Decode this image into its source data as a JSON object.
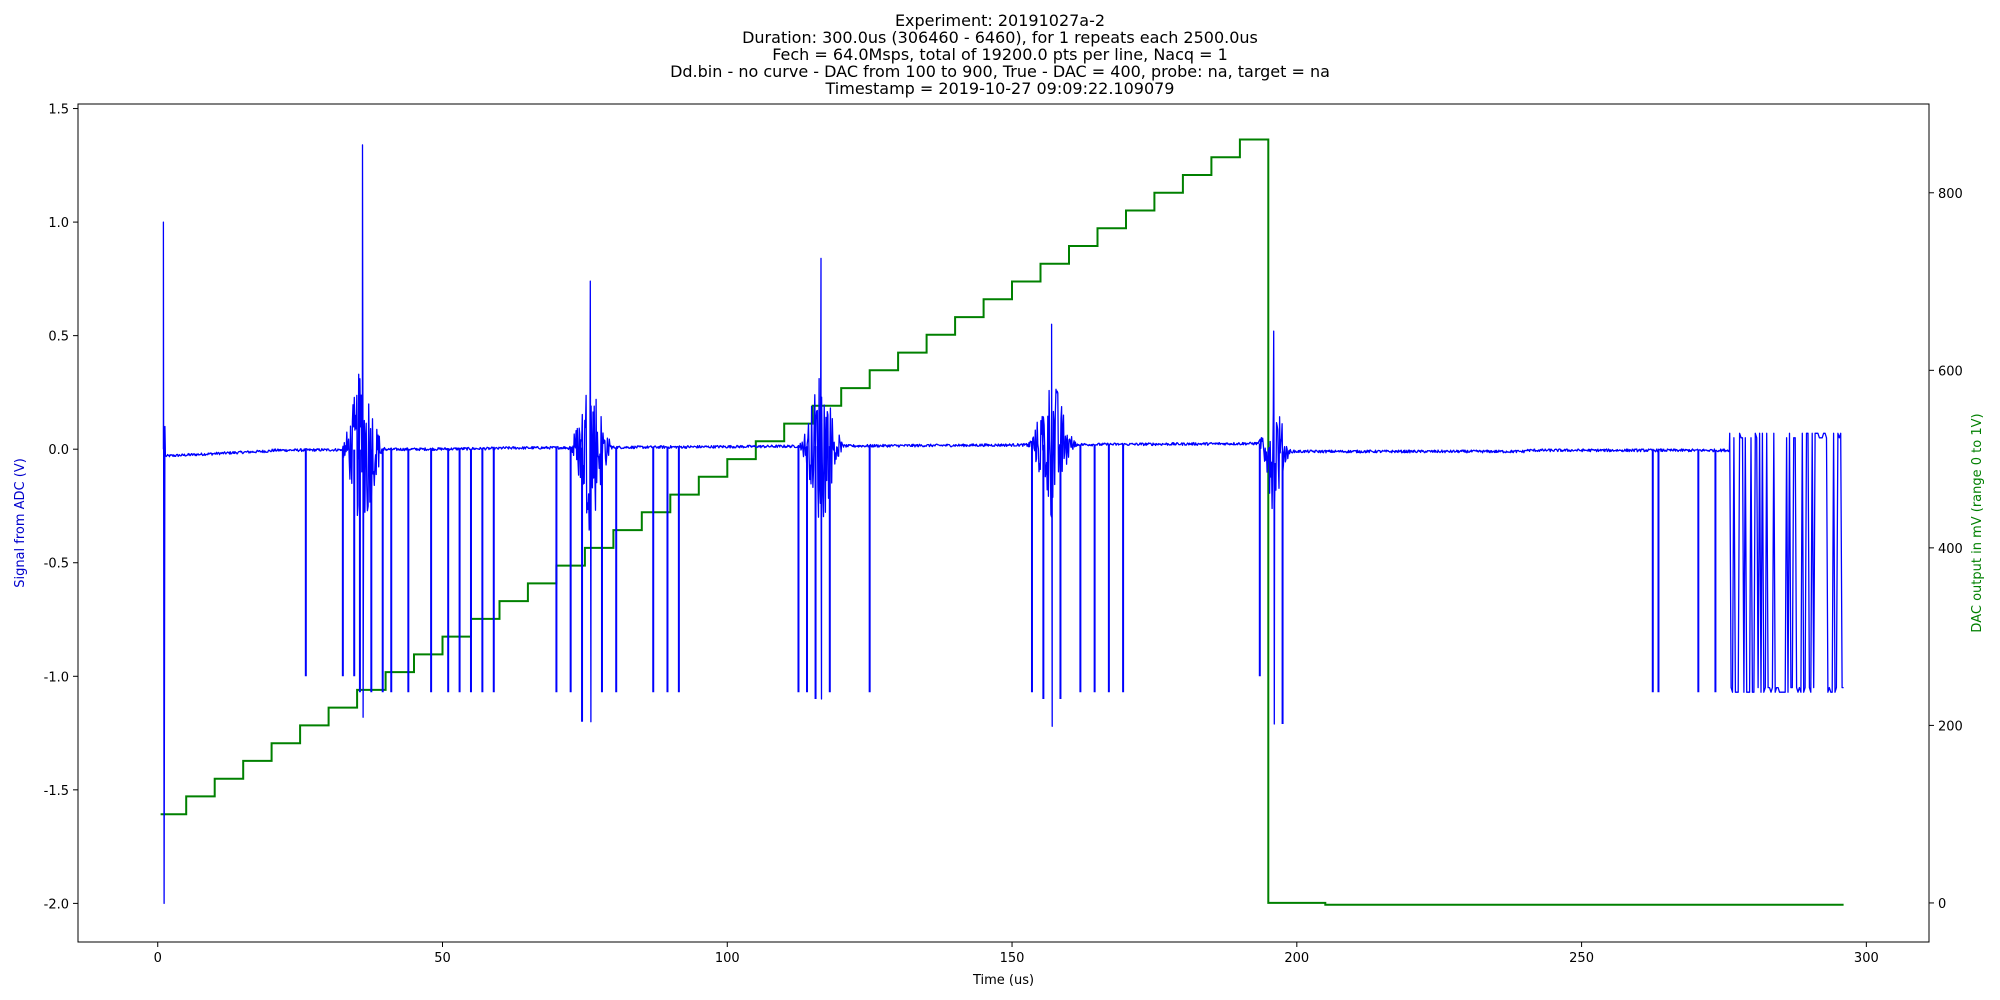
{
  "chart_data": {
    "type": "line",
    "title_lines": [
      "Experiment: 20191027a-2",
      "Duration: 300.0us (306460 - 6460), for 1 repeats each 2500.0us",
      "Fech = 64.0Msps, total of 19200.0 pts per line, Nacq = 1",
      "Dd.bin - no curve - DAC from 100 to 900, True - DAC = 400, probe: na, target = na",
      "Timestamp = 2019-10-27 09:09:22.109079"
    ],
    "xlabel": "Time (us)",
    "ylabel_left": "Signal from ADC (V)",
    "ylabel_right": "DAC output in mV (range 0 to 1V)",
    "xlim": [
      -14,
      311
    ],
    "ylim_left": [
      -2.17,
      1.52
    ],
    "ylim_right": [
      -44,
      900
    ],
    "x_ticks": [
      0,
      50,
      100,
      150,
      200,
      250,
      300
    ],
    "y_left_ticks": [
      1.5,
      1.0,
      0.5,
      0.0,
      -0.5,
      -1.0,
      -1.5,
      -2.0
    ],
    "y_right_ticks": [
      800,
      600,
      400,
      200,
      0
    ],
    "grid": false,
    "colors": {
      "adc": "#0000ff",
      "dac": "#008000",
      "left_label": "#0000cc",
      "right_label": "#008000"
    },
    "series": [
      {
        "name": "Signal from ADC (V)",
        "axis": "left",
        "color": "#0000ff",
        "bursts": [
          {
            "center": 36.0,
            "width": 4.0,
            "amplitude": 0.45,
            "peak_max": 1.34,
            "peak_min": -1.18
          },
          {
            "center": 76.0,
            "width": 4.0,
            "amplitude": 0.4,
            "peak_max": 0.74,
            "peak_min": -1.2
          },
          {
            "center": 116.5,
            "width": 4.0,
            "amplitude": 0.4,
            "peak_max": 0.84,
            "peak_min": -1.1
          },
          {
            "center": 157.0,
            "width": 4.5,
            "amplitude": 0.35,
            "peak_max": 0.55,
            "peak_min": -1.22
          },
          {
            "center": 196.0,
            "width": 3.0,
            "amplitude": 0.3,
            "peak_max": 0.52,
            "peak_min": -1.21
          }
        ],
        "spikes_down": [
          {
            "x": 26.0,
            "y": -1.0
          },
          {
            "x": 32.5,
            "y": -1.0
          },
          {
            "x": 34.5,
            "y": -1.0
          },
          {
            "x": 35.5,
            "y": -1.07
          },
          {
            "x": 37.5,
            "y": -1.07
          },
          {
            "x": 39.5,
            "y": -1.07
          },
          {
            "x": 41.0,
            "y": -1.07
          },
          {
            "x": 44.0,
            "y": -1.07
          },
          {
            "x": 48.0,
            "y": -1.07
          },
          {
            "x": 51.0,
            "y": -1.07
          },
          {
            "x": 53.0,
            "y": -1.07
          },
          {
            "x": 55.0,
            "y": -1.07
          },
          {
            "x": 57.0,
            "y": -1.07
          },
          {
            "x": 59.0,
            "y": -1.07
          },
          {
            "x": 70.0,
            "y": -1.07
          },
          {
            "x": 72.5,
            "y": -1.07
          },
          {
            "x": 74.5,
            "y": -1.2
          },
          {
            "x": 78.0,
            "y": -1.07
          },
          {
            "x": 80.5,
            "y": -1.07
          },
          {
            "x": 87.0,
            "y": -1.07
          },
          {
            "x": 89.5,
            "y": -1.07
          },
          {
            "x": 91.5,
            "y": -1.07
          },
          {
            "x": 112.5,
            "y": -1.07
          },
          {
            "x": 114.0,
            "y": -1.07
          },
          {
            "x": 115.5,
            "y": -1.1
          },
          {
            "x": 118.0,
            "y": -1.07
          },
          {
            "x": 125.0,
            "y": -1.07
          },
          {
            "x": 153.5,
            "y": -1.07
          },
          {
            "x": 155.5,
            "y": -1.1
          },
          {
            "x": 158.5,
            "y": -1.1
          },
          {
            "x": 162.0,
            "y": -1.07
          },
          {
            "x": 164.5,
            "y": -1.07
          },
          {
            "x": 167.0,
            "y": -1.07
          },
          {
            "x": 169.5,
            "y": -1.07
          },
          {
            "x": 193.5,
            "y": -1.0
          },
          {
            "x": 197.5,
            "y": -1.21
          },
          {
            "x": 262.5,
            "y": -1.07
          },
          {
            "x": 263.5,
            "y": -1.07
          },
          {
            "x": 270.5,
            "y": -1.07
          },
          {
            "x": 273.5,
            "y": -1.07
          }
        ],
        "dense_tail": {
          "start": 276.0,
          "end": 296.0,
          "high": 0.07,
          "low": -1.07
        },
        "initial_pulse": {
          "x": 1.0,
          "max": 1.0,
          "min": -2.0
        }
      },
      {
        "name": "DAC output in mV (range 0 to 1V)",
        "axis": "right",
        "color": "#008000",
        "x": [
          0.5,
          5,
          10,
          15,
          20,
          25,
          30,
          35,
          40,
          45,
          50,
          55,
          60,
          65,
          70,
          75,
          80,
          85,
          90,
          95,
          100,
          105,
          110,
          115,
          120,
          125,
          130,
          135,
          140,
          145,
          150,
          155,
          160,
          165,
          170,
          175,
          180,
          185,
          190,
          195,
          205,
          296
        ],
        "y": [
          100,
          120,
          140,
          160,
          180,
          200,
          220,
          240,
          260,
          280,
          300,
          320,
          340,
          360,
          380,
          400,
          420,
          440,
          460,
          480,
          500,
          520,
          540,
          560,
          580,
          600,
          620,
          640,
          660,
          680,
          700,
          720,
          740,
          760,
          780,
          800,
          820,
          840,
          860,
          0,
          -2,
          -2
        ]
      }
    ]
  }
}
